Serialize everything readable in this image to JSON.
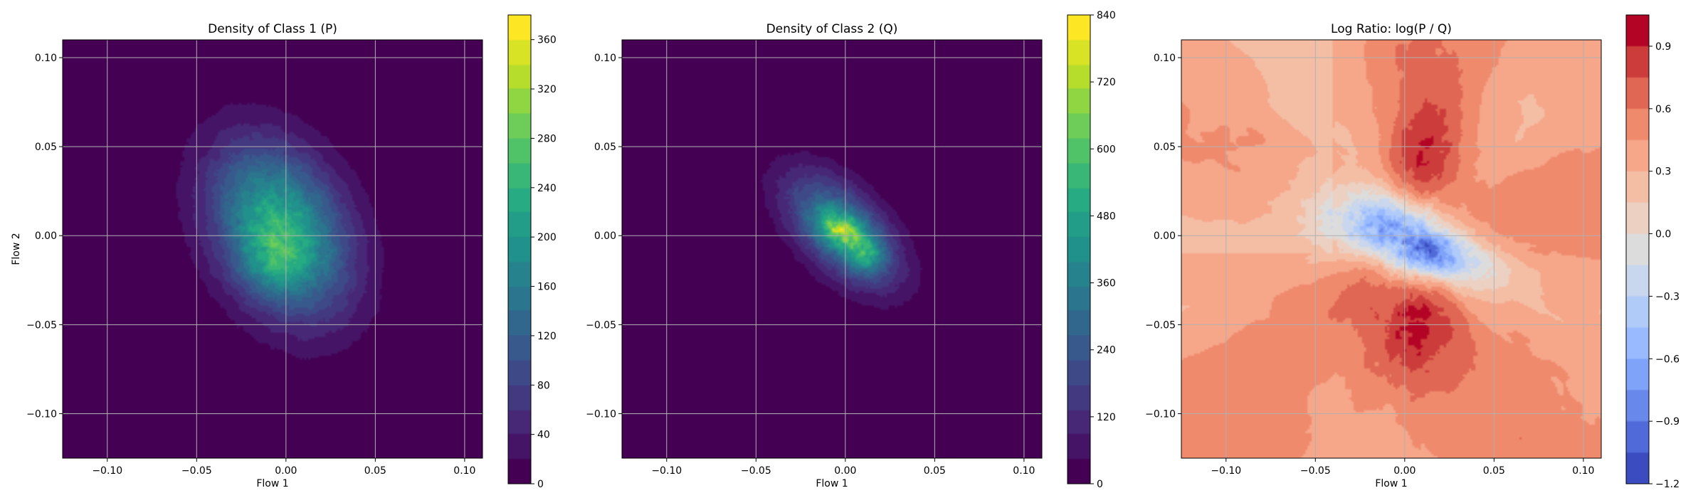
{
  "chart_data": [
    {
      "type": "heatmap",
      "title": "Density of Class 1 (P)",
      "xlabel": "Flow 1",
      "ylabel": "Flow 2",
      "xlim": [
        -0.125,
        0.11
      ],
      "ylim": [
        -0.125,
        0.11
      ],
      "xticks": [
        -0.1,
        -0.05,
        0.0,
        0.05,
        0.1
      ],
      "yticks": [
        -0.1,
        -0.05,
        0.0,
        0.05,
        0.1
      ],
      "xtick_labels": [
        "−0.10",
        "−0.05",
        "0.00",
        "0.05",
        "0.10"
      ],
      "ytick_labels": [
        "−0.10",
        "−0.05",
        "0.00",
        "0.05",
        "0.10"
      ],
      "grid": true,
      "colormap": "viridis",
      "colorbar": {
        "min": 0,
        "max": 380,
        "ticks": [
          0,
          40,
          80,
          120,
          160,
          200,
          240,
          280,
          320,
          360
        ],
        "tick_labels": [
          "0",
          "40",
          "80",
          "120",
          "160",
          "200",
          "240",
          "280",
          "320",
          "360"
        ]
      },
      "density": {
        "peak_value": 280,
        "peak_center": [
          -0.003,
          0.003
        ],
        "secondary_peak": [
          -0.008,
          -0.015
        ],
        "sigma_x": 0.026,
        "sigma_y": 0.032,
        "correlation": -0.3
      }
    },
    {
      "type": "heatmap",
      "title": "Density of Class 2 (Q)",
      "xlabel": "Flow 1",
      "ylabel": "",
      "xlim": [
        -0.125,
        0.11
      ],
      "ylim": [
        -0.125,
        0.11
      ],
      "xticks": [
        -0.1,
        -0.05,
        0.0,
        0.05,
        0.1
      ],
      "yticks": [
        -0.1,
        -0.05,
        0.0,
        0.05,
        0.1
      ],
      "xtick_labels": [
        "−0.10",
        "−0.05",
        "0.00",
        "0.05",
        "0.10"
      ],
      "ytick_labels": [
        "−0.10",
        "−0.05",
        "0.00",
        "0.05",
        "0.10"
      ],
      "grid": true,
      "colormap": "viridis",
      "colorbar": {
        "min": 0,
        "max": 840,
        "ticks": [
          0,
          120,
          240,
          360,
          480,
          600,
          720,
          840
        ],
        "tick_labels": [
          "0",
          "120",
          "240",
          "360",
          "480",
          "600",
          "720",
          "840"
        ]
      },
      "density": {
        "peak_value": 720,
        "peak_center": [
          -0.002,
          0.003
        ],
        "secondary_peak": [
          0.012,
          -0.012
        ],
        "sigma_x": 0.021,
        "sigma_y": 0.021,
        "correlation": -0.55
      }
    },
    {
      "type": "heatmap",
      "title": "Log Ratio: log(P / Q)",
      "xlabel": "Flow 1",
      "ylabel": "",
      "xlim": [
        -0.125,
        0.11
      ],
      "ylim": [
        -0.125,
        0.11
      ],
      "xticks": [
        -0.1,
        -0.05,
        0.0,
        0.05,
        0.1
      ],
      "yticks": [
        -0.1,
        -0.05,
        0.0,
        0.05,
        0.1
      ],
      "xtick_labels": [
        "−0.10",
        "−0.05",
        "0.00",
        "0.05",
        "0.10"
      ],
      "ytick_labels": [
        "−0.10",
        "−0.05",
        "0.00",
        "0.05",
        "0.10"
      ],
      "grid": true,
      "colormap": "coolwarm",
      "colorbar": {
        "min": -1.2,
        "max": 1.05,
        "ticks": [
          -1.2,
          -0.9,
          -0.6,
          -0.3,
          0.0,
          0.3,
          0.6,
          0.9
        ],
        "tick_labels": [
          "−1.2",
          "−0.9",
          "−0.6",
          "−0.3",
          "0.0",
          "0.3",
          "0.6",
          "0.9"
        ]
      },
      "log_ratio": {
        "background": 0.45,
        "low_center": [
          0.0,
          0.0
        ],
        "lowest_value": -1.1,
        "high_regions": [
          {
            "center": [
              0.0,
              -0.05
            ],
            "value": 0.95
          },
          {
            "center": [
              0.015,
              0.04
            ],
            "value": 0.8
          }
        ]
      }
    }
  ]
}
